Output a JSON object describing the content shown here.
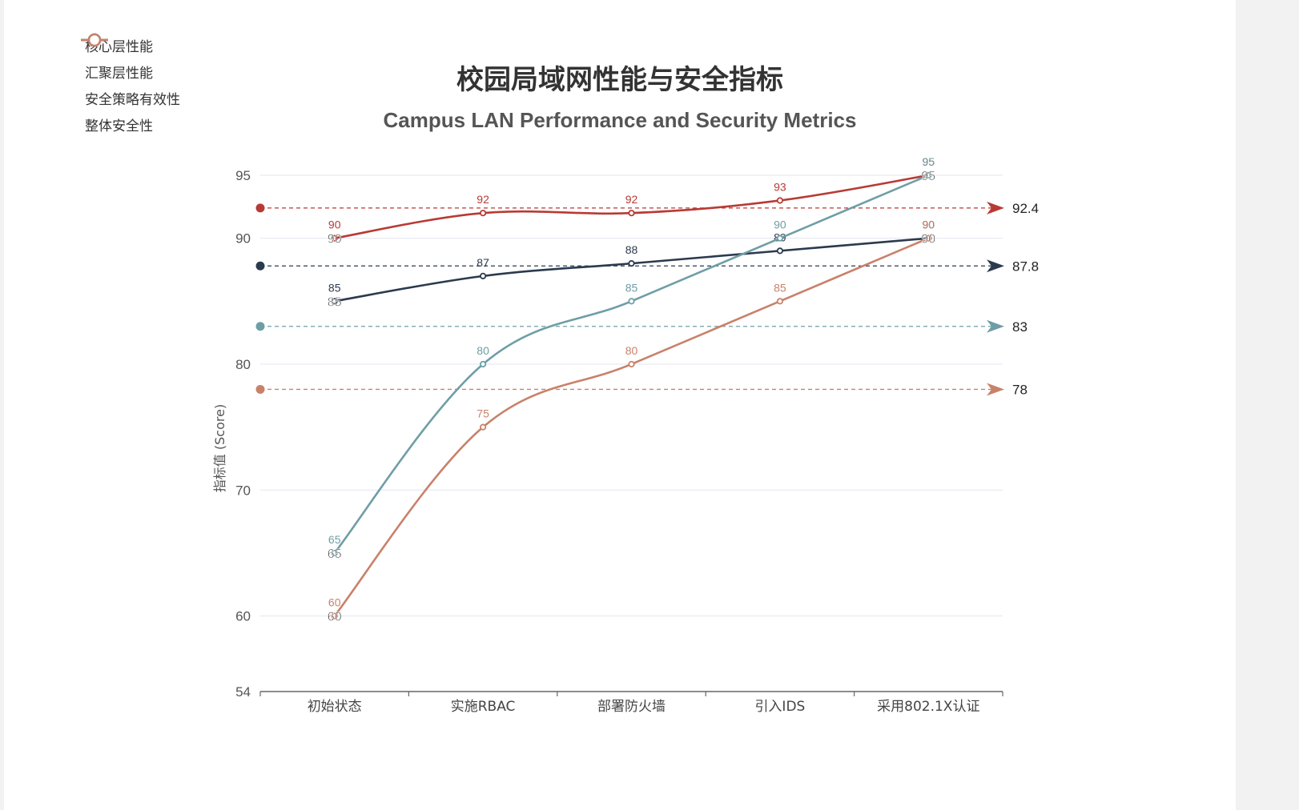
{
  "chart_data": {
    "type": "line",
    "title": "校园局域网性能与安全指标",
    "subtitle": "Campus LAN Performance and Security Metrics",
    "ylabel": "指标值 (Score)",
    "xlabel": "",
    "ylim": [
      54,
      95
    ],
    "yticks": [
      54,
      60,
      70,
      80,
      90,
      95
    ],
    "categories": [
      "初始状态",
      "实施RBAC",
      "部署防火墙",
      "引入IDS",
      "采用802.1X认证"
    ],
    "grid": true,
    "legend_position": "top-left",
    "series": [
      {
        "name": "核心层性能",
        "color": "#b83a35",
        "values": [
          90,
          92,
          92,
          93,
          95
        ],
        "average": 92.4,
        "average_label": "92.4"
      },
      {
        "name": "汇聚层性能",
        "color": "#2b3a4e",
        "values": [
          85,
          87,
          88,
          89,
          90
        ],
        "average": 87.8,
        "average_label": "87.8"
      },
      {
        "name": "安全策略有效性",
        "color": "#6e9ea6",
        "values": [
          65,
          80,
          85,
          90,
          95
        ],
        "average": 83,
        "average_label": "83"
      },
      {
        "name": "整体安全性",
        "color": "#c8826a",
        "values": [
          60,
          75,
          80,
          85,
          90
        ],
        "average": 78,
        "average_label": "78"
      }
    ]
  }
}
